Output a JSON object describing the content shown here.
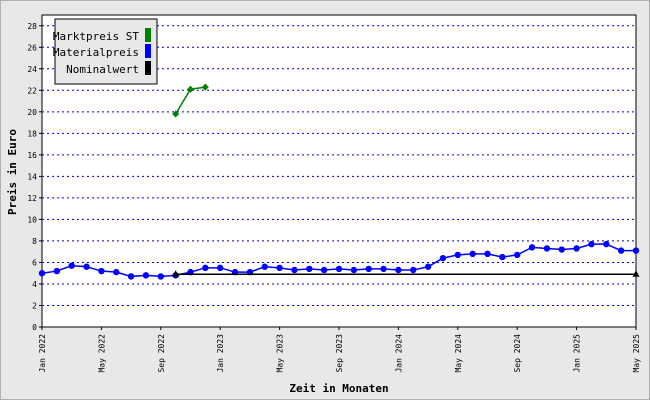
{
  "chart_data": {
    "type": "line",
    "xlabel": "Zeit in Monaten",
    "ylabel": "Preis in Euro",
    "ylim": [
      0,
      29
    ],
    "yticks": [
      0,
      2,
      4,
      6,
      8,
      10,
      12,
      14,
      16,
      18,
      20,
      22,
      24,
      26,
      28
    ],
    "x_tick_labels": [
      "Jan 2022",
      "May 2022",
      "Sep 2022",
      "Jan 2023",
      "May 2023",
      "Sep 2023",
      "Jan 2024",
      "May 2024",
      "Sep 2024",
      "Jan 2025",
      "May 2025"
    ],
    "x_range": [
      "2022-01",
      "2025-05"
    ],
    "grid": "horizontal dotted",
    "legend_position": "top-left",
    "series": [
      {
        "name": "Marktpreis ST",
        "color": "#008000",
        "marker": "diamond",
        "x": [
          "2022-10",
          "2022-11",
          "2022-12"
        ],
        "values": [
          19.8,
          22.1,
          22.3
        ]
      },
      {
        "name": "Materialpreis",
        "color": "#0000ff",
        "marker": "circle",
        "x": [
          "2022-01",
          "2022-02",
          "2022-03",
          "2022-04",
          "2022-05",
          "2022-06",
          "2022-07",
          "2022-08",
          "2022-09",
          "2022-10",
          "2022-11",
          "2022-12",
          "2023-01",
          "2023-02",
          "2023-03",
          "2023-04",
          "2023-05",
          "2023-06",
          "2023-07",
          "2023-08",
          "2023-09",
          "2023-10",
          "2023-11",
          "2023-12",
          "2024-01",
          "2024-02",
          "2024-03",
          "2024-04",
          "2024-05",
          "2024-06",
          "2024-07",
          "2024-08",
          "2024-09",
          "2024-10",
          "2024-11",
          "2024-12",
          "2025-01",
          "2025-02",
          "2025-03",
          "2025-04",
          "2025-05"
        ],
        "values": [
          5.0,
          5.2,
          5.7,
          5.6,
          5.2,
          5.1,
          4.7,
          4.8,
          4.7,
          4.8,
          5.1,
          5.5,
          5.5,
          5.1,
          5.1,
          5.6,
          5.5,
          5.3,
          5.4,
          5.3,
          5.4,
          5.3,
          5.4,
          5.4,
          5.3,
          5.3,
          5.6,
          6.4,
          6.7,
          6.8,
          6.8,
          6.5,
          6.7,
          7.4,
          7.3,
          7.2,
          7.3,
          7.7,
          7.7,
          7.1,
          7.1
        ]
      },
      {
        "name": "Nominalwert",
        "color": "#000000",
        "marker": "triangle",
        "x": [
          "2022-10",
          "2025-05"
        ],
        "values": [
          4.9,
          4.9
        ]
      }
    ]
  }
}
